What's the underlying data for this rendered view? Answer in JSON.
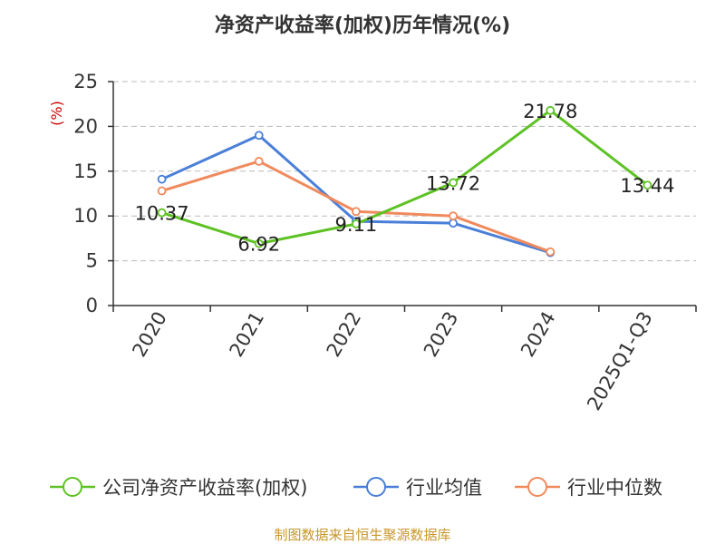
{
  "chart_data": {
    "type": "line",
    "title": "净资产收益率(加权)历年情况(%)",
    "ylabel": "(%)",
    "categories": [
      "2020",
      "2021",
      "2022",
      "2023",
      "2024",
      "2025Q1-Q3"
    ],
    "ylim": [
      0,
      25
    ],
    "yticks": [
      "0",
      "5",
      "10",
      "15",
      "20",
      "25"
    ],
    "grid": true,
    "legend_position": "bottom",
    "series": [
      {
        "name": "公司净资产收益率(加权)",
        "color": "#5ec224",
        "values": [
          10.37,
          6.92,
          9.11,
          13.72,
          21.78,
          13.44
        ],
        "labels": [
          "10.37",
          "6.92",
          "9.11",
          "13.72",
          "21.78",
          "13.44"
        ]
      },
      {
        "name": "行业均值",
        "color": "#4a7fd8",
        "values": [
          14.1,
          19.0,
          9.4,
          9.2,
          5.9,
          null
        ]
      },
      {
        "name": "行业中位数",
        "color": "#f08a5d",
        "values": [
          12.8,
          16.1,
          10.5,
          10.0,
          6.0,
          null
        ]
      }
    ],
    "source": "制图数据来自恒生聚源数据库",
    "source_color": "#c8972a",
    "ylabel_color": "#cc0000"
  }
}
